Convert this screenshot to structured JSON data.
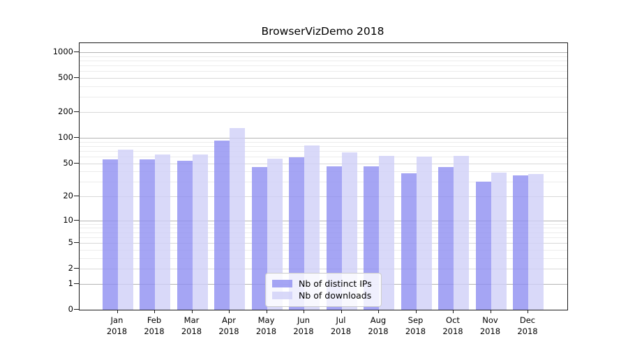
{
  "chart_data": {
    "type": "bar",
    "title": "BrowserVizDemo 2018",
    "year_label": "2018",
    "months": [
      "Jan",
      "Feb",
      "Mar",
      "Apr",
      "May",
      "Jun",
      "Jul",
      "Aug",
      "Sep",
      "Oct",
      "Nov",
      "Dec"
    ],
    "series": [
      {
        "name": "Nb of distinct IPs",
        "color": "#8c8cf1",
        "values": [
          55,
          56,
          53,
          93,
          45,
          59,
          46,
          46,
          38,
          45,
          30,
          36
        ]
      },
      {
        "name": "Nb of downloads",
        "color": "#cfcff8",
        "values": [
          73,
          63,
          64,
          130,
          57,
          81,
          67,
          61,
          60,
          61,
          39,
          37
        ]
      }
    ],
    "y_axis": {
      "scale": "log10(value+1)",
      "ticks": [
        0,
        1,
        2,
        5,
        10,
        20,
        50,
        100,
        200,
        500,
        1000
      ],
      "minor_ticks": [
        3,
        4,
        6,
        7,
        8,
        9,
        30,
        40,
        60,
        70,
        80,
        90,
        300,
        400,
        600,
        700,
        800,
        900
      ],
      "decade_ticks": [
        1,
        10,
        100,
        1000
      ],
      "range": [
        0,
        1000
      ]
    },
    "legend": {
      "position": "lower-center"
    },
    "grid": "on",
    "colors": {
      "frame": "#1a1a1a",
      "grid_decade": "#b4b4b4",
      "grid_major": "#d8d8d8",
      "grid_minor": "#ececec",
      "legend_border": "#cccccc"
    }
  }
}
